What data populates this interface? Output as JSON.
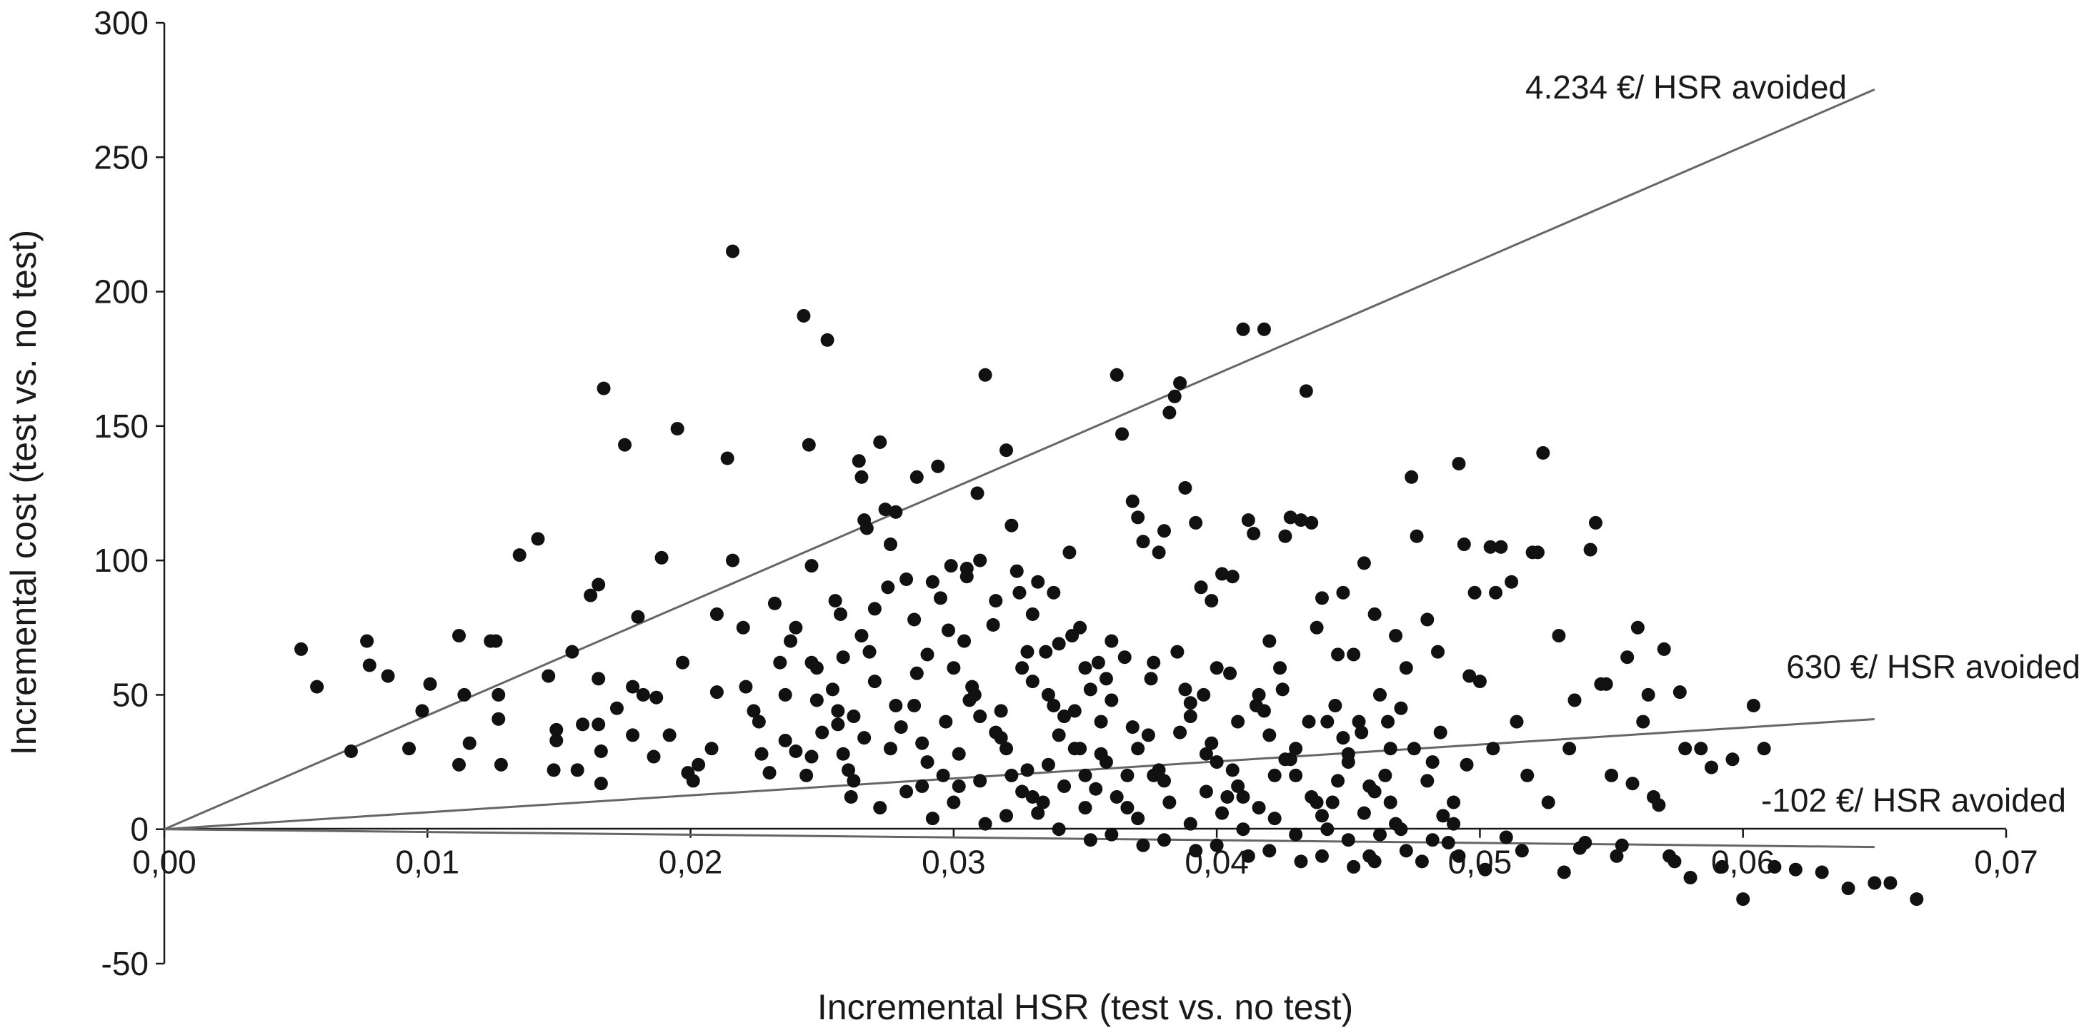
{
  "chart_data": {
    "type": "scatter",
    "title": "",
    "xlabel": "Incremental HSR (test vs. no test)",
    "ylabel": "Incremental cost (test vs. no test)",
    "xlim": [
      0,
      0.07
    ],
    "ylim": [
      -50,
      300
    ],
    "x_ticks": [
      "0,00",
      "0,01",
      "0,02",
      "0,03",
      "0,04",
      "0,05",
      "0,06",
      "0,07"
    ],
    "y_ticks": [
      "300",
      "250",
      "200",
      "150",
      "100",
      "50",
      "0",
      "-50"
    ],
    "reference_lines": [
      {
        "label": "4.234 €/ HSR avoided",
        "slope": 4234,
        "x_end": 0.065
      },
      {
        "label": "630 €/ HSR avoided",
        "slope": 630,
        "x_end": 0.065
      },
      {
        "label": "-102 €/ HSR avoided",
        "slope": -102,
        "x_end": 0.065
      }
    ],
    "grid": false,
    "point_color": "#111111",
    "line_color": "#666666",
    "points": [
      [
        0.0052,
        67
      ],
      [
        0.0058,
        53
      ],
      [
        0.0071,
        29
      ],
      [
        0.0077,
        70
      ],
      [
        0.0078,
        61
      ],
      [
        0.0085,
        57
      ],
      [
        0.0093,
        30
      ],
      [
        0.0098,
        44
      ],
      [
        0.0101,
        54
      ],
      [
        0.0112,
        72
      ],
      [
        0.0112,
        24
      ],
      [
        0.0114,
        50
      ],
      [
        0.0116,
        32
      ],
      [
        0.0124,
        70
      ],
      [
        0.0126,
        70
      ],
      [
        0.0127,
        50
      ],
      [
        0.0127,
        41
      ],
      [
        0.0128,
        24
      ],
      [
        0.0135,
        102
      ],
      [
        0.0142,
        108
      ],
      [
        0.0146,
        57
      ],
      [
        0.0148,
        22
      ],
      [
        0.0149,
        37
      ],
      [
        0.0149,
        33
      ],
      [
        0.0155,
        66
      ],
      [
        0.0157,
        22
      ],
      [
        0.0159,
        39
      ],
      [
        0.0162,
        87
      ],
      [
        0.0165,
        91
      ],
      [
        0.0167,
        164
      ],
      [
        0.0165,
        39
      ],
      [
        0.0165,
        56
      ],
      [
        0.0166,
        29
      ],
      [
        0.0166,
        17
      ],
      [
        0.0172,
        45
      ],
      [
        0.0175,
        143
      ],
      [
        0.0178,
        35
      ],
      [
        0.018,
        79
      ],
      [
        0.0178,
        53
      ],
      [
        0.0182,
        50
      ],
      [
        0.0187,
        49
      ],
      [
        0.0189,
        101
      ],
      [
        0.0195,
        149
      ],
      [
        0.0199,
        21
      ],
      [
        0.0197,
        62
      ],
      [
        0.0201,
        18
      ],
      [
        0.0186,
        27
      ],
      [
        0.0192,
        35
      ],
      [
        0.021,
        51
      ],
      [
        0.0203,
        24
      ],
      [
        0.0208,
        30
      ],
      [
        0.021,
        80
      ],
      [
        0.0214,
        138
      ],
      [
        0.0216,
        100
      ],
      [
        0.0216,
        215
      ],
      [
        0.022,
        75
      ],
      [
        0.0221,
        53
      ],
      [
        0.0224,
        44
      ],
      [
        0.0227,
        28
      ],
      [
        0.023,
        21
      ],
      [
        0.0232,
        84
      ],
      [
        0.0234,
        62
      ],
      [
        0.0236,
        33
      ],
      [
        0.024,
        29
      ],
      [
        0.0243,
        191
      ],
      [
        0.0245,
        143
      ],
      [
        0.0246,
        98
      ],
      [
        0.0246,
        27
      ],
      [
        0.0248,
        60
      ],
      [
        0.0252,
        182
      ],
      [
        0.0254,
        52
      ],
      [
        0.0256,
        39
      ],
      [
        0.0258,
        64
      ],
      [
        0.0257,
        80
      ],
      [
        0.0261,
        12
      ],
      [
        0.0262,
        42
      ],
      [
        0.0264,
        137
      ],
      [
        0.0265,
        131
      ],
      [
        0.0266,
        115
      ],
      [
        0.0267,
        112
      ],
      [
        0.027,
        82
      ],
      [
        0.0272,
        144
      ],
      [
        0.0274,
        119
      ],
      [
        0.0276,
        106
      ],
      [
        0.0278,
        118
      ],
      [
        0.0282,
        93
      ],
      [
        0.0285,
        46
      ],
      [
        0.0286,
        131
      ],
      [
        0.0288,
        16
      ],
      [
        0.029,
        65
      ],
      [
        0.0292,
        92
      ],
      [
        0.0294,
        135
      ],
      [
        0.0297,
        40
      ],
      [
        0.0299,
        98
      ],
      [
        0.0302,
        28
      ],
      [
        0.0304,
        70
      ],
      [
        0.0305,
        97
      ],
      [
        0.0307,
        53
      ],
      [
        0.0309,
        125
      ],
      [
        0.031,
        100
      ],
      [
        0.0312,
        169
      ],
      [
        0.0316,
        85
      ],
      [
        0.0318,
        44
      ],
      [
        0.032,
        141
      ],
      [
        0.0322,
        113
      ],
      [
        0.0324,
        96
      ],
      [
        0.0326,
        60
      ],
      [
        0.0328,
        22
      ],
      [
        0.033,
        80
      ],
      [
        0.0332,
        92
      ],
      [
        0.0334,
        10
      ],
      [
        0.0336,
        50
      ],
      [
        0.0338,
        88
      ],
      [
        0.034,
        69
      ],
      [
        0.0342,
        42
      ],
      [
        0.0344,
        103
      ],
      [
        0.0346,
        30
      ],
      [
        0.0348,
        75
      ],
      [
        0.035,
        60
      ],
      [
        0.0352,
        52
      ],
      [
        0.0354,
        15
      ],
      [
        0.0356,
        40
      ],
      [
        0.0358,
        25
      ],
      [
        0.036,
        70
      ],
      [
        0.0362,
        169
      ],
      [
        0.0364,
        147
      ],
      [
        0.0366,
        20
      ],
      [
        0.0368,
        122
      ],
      [
        0.037,
        116
      ],
      [
        0.0372,
        107
      ],
      [
        0.0374,
        35
      ],
      [
        0.0376,
        62
      ],
      [
        0.0378,
        103
      ],
      [
        0.038,
        111
      ],
      [
        0.0382,
        155
      ],
      [
        0.0384,
        161
      ],
      [
        0.0386,
        166
      ],
      [
        0.0388,
        127
      ],
      [
        0.039,
        47
      ],
      [
        0.0392,
        114
      ],
      [
        0.0394,
        90
      ],
      [
        0.0396,
        28
      ],
      [
        0.0398,
        85
      ],
      [
        0.04,
        60
      ],
      [
        0.0402,
        95
      ],
      [
        0.0404,
        12
      ],
      [
        0.0406,
        94
      ],
      [
        0.0408,
        40
      ],
      [
        0.041,
        186
      ],
      [
        0.0412,
        115
      ],
      [
        0.0414,
        110
      ],
      [
        0.0416,
        50
      ],
      [
        0.0418,
        186
      ],
      [
        0.042,
        70
      ],
      [
        0.0422,
        20
      ],
      [
        0.0424,
        60
      ],
      [
        0.0426,
        109
      ],
      [
        0.0428,
        116
      ],
      [
        0.043,
        30
      ],
      [
        0.0432,
        115
      ],
      [
        0.0434,
        163
      ],
      [
        0.0436,
        114
      ],
      [
        0.0438,
        75
      ],
      [
        0.044,
        86
      ],
      [
        0.0442,
        40
      ],
      [
        0.0444,
        10
      ],
      [
        0.0446,
        65
      ],
      [
        0.0448,
        88
      ],
      [
        0.045,
        25
      ],
      [
        0.0452,
        65
      ],
      [
        0.0454,
        40
      ],
      [
        0.0456,
        99
      ],
      [
        0.0458,
        -10
      ],
      [
        0.046,
        80
      ],
      [
        0.0462,
        50
      ],
      [
        0.0464,
        20
      ],
      [
        0.0466,
        30
      ],
      [
        0.0468,
        72
      ],
      [
        0.047,
        45
      ],
      [
        0.0472,
        60
      ],
      [
        0.0474,
        131
      ],
      [
        0.0476,
        109
      ],
      [
        0.0478,
        -12
      ],
      [
        0.048,
        78
      ],
      [
        0.0482,
        25
      ],
      [
        0.0484,
        66
      ],
      [
        0.0486,
        5
      ],
      [
        0.0488,
        -5
      ],
      [
        0.049,
        10
      ],
      [
        0.0492,
        136
      ],
      [
        0.0494,
        106
      ],
      [
        0.0496,
        57
      ],
      [
        0.0498,
        88
      ],
      [
        0.05,
        55
      ],
      [
        0.0502,
        -15
      ],
      [
        0.0504,
        105
      ],
      [
        0.0506,
        88
      ],
      [
        0.0508,
        105
      ],
      [
        0.051,
        -3
      ],
      [
        0.0512,
        92
      ],
      [
        0.0514,
        40
      ],
      [
        0.0516,
        -8
      ],
      [
        0.0518,
        20
      ],
      [
        0.052,
        103
      ],
      [
        0.0522,
        103
      ],
      [
        0.0524,
        140
      ],
      [
        0.0526,
        10
      ],
      [
        0.053,
        72
      ],
      [
        0.0532,
        -16
      ],
      [
        0.0534,
        30
      ],
      [
        0.0536,
        48
      ],
      [
        0.0538,
        -7
      ],
      [
        0.054,
        -5
      ],
      [
        0.0542,
        104
      ],
      [
        0.0544,
        114
      ],
      [
        0.0546,
        54
      ],
      [
        0.0548,
        54
      ],
      [
        0.055,
        20
      ],
      [
        0.0552,
        -10
      ],
      [
        0.0554,
        -6
      ],
      [
        0.0556,
        64
      ],
      [
        0.0558,
        17
      ],
      [
        0.056,
        75
      ],
      [
        0.0562,
        40
      ],
      [
        0.0564,
        50
      ],
      [
        0.0566,
        12
      ],
      [
        0.0568,
        9
      ],
      [
        0.057,
        67
      ],
      [
        0.0572,
        -10
      ],
      [
        0.0574,
        -12
      ],
      [
        0.0576,
        51
      ],
      [
        0.0578,
        30
      ],
      [
        0.058,
        -18
      ],
      [
        0.0584,
        30
      ],
      [
        0.0588,
        23
      ],
      [
        0.0592,
        -14
      ],
      [
        0.0596,
        26
      ],
      [
        0.06,
        -26
      ],
      [
        0.0604,
        46
      ],
      [
        0.0608,
        30
      ],
      [
        0.0612,
        -14
      ],
      [
        0.062,
        -15
      ],
      [
        0.063,
        -16
      ],
      [
        0.064,
        -22
      ],
      [
        0.065,
        -20
      ],
      [
        0.0656,
        -20
      ],
      [
        0.0666,
        -26
      ],
      [
        0.0246,
        62
      ],
      [
        0.0256,
        44
      ],
      [
        0.0266,
        34
      ],
      [
        0.0276,
        30
      ],
      [
        0.0286,
        58
      ],
      [
        0.0296,
        20
      ],
      [
        0.0306,
        48
      ],
      [
        0.0316,
        36
      ],
      [
        0.0326,
        14
      ],
      [
        0.0336,
        24
      ],
      [
        0.0346,
        44
      ],
      [
        0.0356,
        28
      ],
      [
        0.0366,
        8
      ],
      [
        0.0376,
        20
      ],
      [
        0.0386,
        36
      ],
      [
        0.0396,
        14
      ],
      [
        0.0406,
        22
      ],
      [
        0.0416,
        8
      ],
      [
        0.0426,
        26
      ],
      [
        0.0436,
        12
      ],
      [
        0.0446,
        18
      ],
      [
        0.0456,
        6
      ],
      [
        0.0466,
        10
      ],
      [
        0.0236,
        50
      ],
      [
        0.025,
        36
      ],
      [
        0.026,
        22
      ],
      [
        0.027,
        55
      ],
      [
        0.028,
        38
      ],
      [
        0.029,
        25
      ],
      [
        0.03,
        60
      ],
      [
        0.031,
        42
      ],
      [
        0.032,
        30
      ],
      [
        0.033,
        55
      ],
      [
        0.034,
        35
      ],
      [
        0.035,
        20
      ],
      [
        0.036,
        48
      ],
      [
        0.037,
        30
      ],
      [
        0.038,
        18
      ],
      [
        0.039,
        42
      ],
      [
        0.04,
        25
      ],
      [
        0.041,
        12
      ],
      [
        0.042,
        35
      ],
      [
        0.043,
        20
      ],
      [
        0.044,
        5
      ],
      [
        0.045,
        28
      ],
      [
        0.046,
        14
      ],
      [
        0.047,
        0
      ],
      [
        0.048,
        18
      ],
      [
        0.049,
        2
      ],
      [
        0.0226,
        40
      ],
      [
        0.0238,
        70
      ],
      [
        0.0248,
        48
      ],
      [
        0.0258,
        28
      ],
      [
        0.0268,
        66
      ],
      [
        0.0278,
        46
      ],
      [
        0.0288,
        32
      ],
      [
        0.0298,
        74
      ],
      [
        0.0308,
        50
      ],
      [
        0.0318,
        34
      ],
      [
        0.0328,
        66
      ],
      [
        0.0338,
        46
      ],
      [
        0.0348,
        30
      ],
      [
        0.0358,
        56
      ],
      [
        0.0368,
        38
      ],
      [
        0.0378,
        22
      ],
      [
        0.0388,
        52
      ],
      [
        0.0398,
        32
      ],
      [
        0.0408,
        16
      ],
      [
        0.0418,
        44
      ],
      [
        0.0428,
        26
      ],
      [
        0.0438,
        10
      ],
      [
        0.0448,
        34
      ],
      [
        0.0458,
        16
      ],
      [
        0.0468,
        2
      ],
      [
        0.03,
        10
      ],
      [
        0.031,
        18
      ],
      [
        0.032,
        5
      ],
      [
        0.033,
        12
      ],
      [
        0.034,
        0
      ],
      [
        0.035,
        8
      ],
      [
        0.036,
        -2
      ],
      [
        0.037,
        4
      ],
      [
        0.038,
        -4
      ],
      [
        0.039,
        2
      ],
      [
        0.04,
        -6
      ],
      [
        0.041,
        0
      ],
      [
        0.042,
        -8
      ],
      [
        0.043,
        -2
      ],
      [
        0.044,
        -10
      ],
      [
        0.045,
        -4
      ],
      [
        0.046,
        -12
      ],
      [
        0.024,
        75
      ],
      [
        0.0255,
        85
      ],
      [
        0.0265,
        72
      ],
      [
        0.0275,
        90
      ],
      [
        0.0285,
        78
      ],
      [
        0.0295,
        86
      ],
      [
        0.0305,
        94
      ],
      [
        0.0315,
        76
      ],
      [
        0.0325,
        88
      ],
      [
        0.0335,
        66
      ],
      [
        0.0345,
        72
      ],
      [
        0.0355,
        62
      ],
      [
        0.0365,
        64
      ],
      [
        0.0375,
        56
      ],
      [
        0.0385,
        66
      ],
      [
        0.0395,
        50
      ],
      [
        0.0405,
        58
      ],
      [
        0.0415,
        46
      ],
      [
        0.0425,
        52
      ],
      [
        0.0435,
        40
      ],
      [
        0.0445,
        46
      ],
      [
        0.0455,
        36
      ],
      [
        0.0465,
        40
      ],
      [
        0.0475,
        30
      ],
      [
        0.0485,
        36
      ],
      [
        0.0495,
        24
      ],
      [
        0.0505,
        30
      ],
      [
        0.0244,
        20
      ],
      [
        0.0262,
        18
      ],
      [
        0.0272,
        8
      ],
      [
        0.0282,
        14
      ],
      [
        0.0292,
        4
      ],
      [
        0.0302,
        16
      ],
      [
        0.0312,
        2
      ],
      [
        0.0322,
        20
      ],
      [
        0.0332,
        6
      ],
      [
        0.0342,
        16
      ],
      [
        0.0352,
        -4
      ],
      [
        0.0362,
        12
      ],
      [
        0.0372,
        -6
      ],
      [
        0.0382,
        10
      ],
      [
        0.0392,
        -8
      ],
      [
        0.0402,
        6
      ],
      [
        0.0412,
        -10
      ],
      [
        0.0422,
        4
      ],
      [
        0.0432,
        -12
      ],
      [
        0.0442,
        0
      ],
      [
        0.0452,
        -14
      ],
      [
        0.0462,
        -2
      ],
      [
        0.0472,
        -8
      ],
      [
        0.0482,
        -4
      ],
      [
        0.0492,
        -10
      ]
    ]
  }
}
